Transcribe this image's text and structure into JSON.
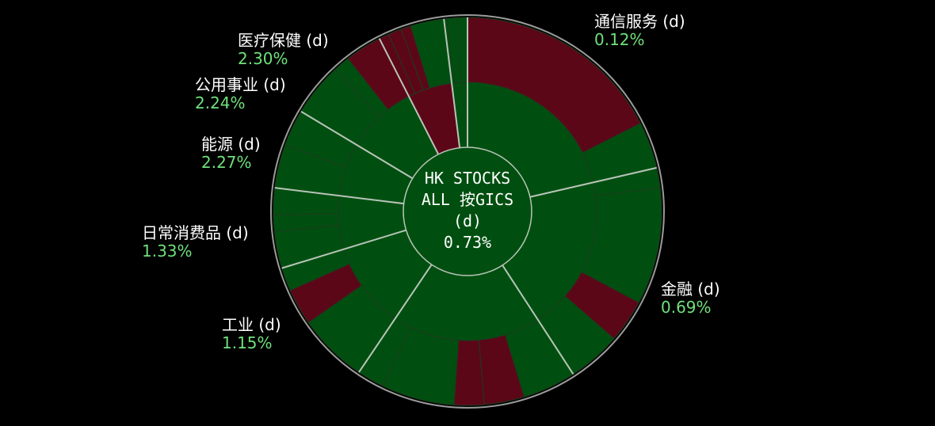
{
  "colors": {
    "background": "#000000",
    "positive": "#004f10",
    "negative": "#5c0718",
    "divider": "#b8c4b8",
    "label_text": "#ffffff",
    "label_pct": "#6fe07a"
  },
  "chart_data": {
    "type": "sunburst",
    "title": "",
    "center": {
      "line1": "HK STOCKS",
      "line2": "ALL 按GICS",
      "line3": "(d)",
      "value": "0.73%"
    },
    "sectors": [
      {
        "name": "通信服务 (d)",
        "change": "0.12%",
        "change_pct": 0.12,
        "angle_start": 0,
        "angle_end": 77
      },
      {
        "name": "金融 (d)",
        "change": "0.69%",
        "change_pct": 0.69,
        "angle_start": 77,
        "angle_end": 147
      },
      {
        "name": "工业 (d)",
        "change": "1.15%",
        "change_pct": 1.15,
        "angle_start": 147,
        "angle_end": 214
      },
      {
        "name": "日常消费品 (d)",
        "change": "1.33%",
        "change_pct": 1.33,
        "angle_start": 214,
        "angle_end": 253
      },
      {
        "name": "能源 (d)",
        "change": "2.27%",
        "change_pct": 2.27,
        "angle_start": 253,
        "angle_end": 277
      },
      {
        "name": "公用事业 (d)",
        "change": "2.24%",
        "change_pct": 2.24,
        "angle_start": 277,
        "angle_end": 301
      },
      {
        "name": "医疗保健 (d)",
        "change": "2.30%",
        "change_pct": 2.3,
        "angle_start": 301,
        "angle_end": 333
      },
      {
        "name": "",
        "change": "",
        "change_pct": -0.5,
        "angle_start": 333,
        "angle_end": 353
      },
      {
        "name": "",
        "change": "",
        "change_pct": 0.8,
        "angle_start": 353,
        "angle_end": 360
      }
    ],
    "subsectors": [
      {
        "angle_start": 0,
        "angle_end": 63,
        "change_pct": -1.0
      },
      {
        "angle_start": 63,
        "angle_end": 83,
        "change_pct": 0.6
      },
      {
        "angle_start": 83,
        "angle_end": 118,
        "change_pct": 0.7
      },
      {
        "angle_start": 118,
        "angle_end": 131,
        "change_pct": -0.8
      },
      {
        "angle_start": 131,
        "angle_end": 147,
        "change_pct": 0.9
      },
      {
        "angle_start": 147,
        "angle_end": 163,
        "change_pct": 1.2
      },
      {
        "angle_start": 163,
        "angle_end": 175,
        "change_pct": -0.6
      },
      {
        "angle_start": 175,
        "angle_end": 184,
        "change_pct": -0.7
      },
      {
        "angle_start": 184,
        "angle_end": 206,
        "change_pct": 1.1
      },
      {
        "angle_start": 206,
        "angle_end": 214,
        "change_pct": 0.9
      },
      {
        "angle_start": 214,
        "angle_end": 235,
        "change_pct": 1.3
      },
      {
        "angle_start": 235,
        "angle_end": 246,
        "change_pct": -0.9
      },
      {
        "angle_start": 246,
        "angle_end": 253,
        "change_pct": 1.0
      },
      {
        "angle_start": 253,
        "angle_end": 264,
        "change_pct": 1.4
      },
      {
        "angle_start": 264,
        "angle_end": 269,
        "change_pct": 1.2
      },
      {
        "angle_start": 269,
        "angle_end": 277,
        "change_pct": 1.3
      },
      {
        "angle_start": 277,
        "angle_end": 290,
        "change_pct": 2.2
      },
      {
        "angle_start": 290,
        "angle_end": 301,
        "change_pct": 2.0
      },
      {
        "angle_start": 301,
        "angle_end": 317,
        "change_pct": 2.3
      },
      {
        "angle_start": 317,
        "angle_end": 322,
        "change_pct": 2.1
      },
      {
        "angle_start": 322,
        "angle_end": 336,
        "change_pct": -0.8
      },
      {
        "angle_start": 336,
        "angle_end": 340,
        "change_pct": -0.5
      },
      {
        "angle_start": 340,
        "angle_end": 343,
        "change_pct": -0.4
      },
      {
        "angle_start": 343,
        "angle_end": 354,
        "change_pct": 0.6
      },
      {
        "angle_start": 354,
        "angle_end": 357,
        "change_pct": 0.5
      },
      {
        "angle_start": 357,
        "angle_end": 360,
        "change_pct": 0.4
      }
    ]
  }
}
